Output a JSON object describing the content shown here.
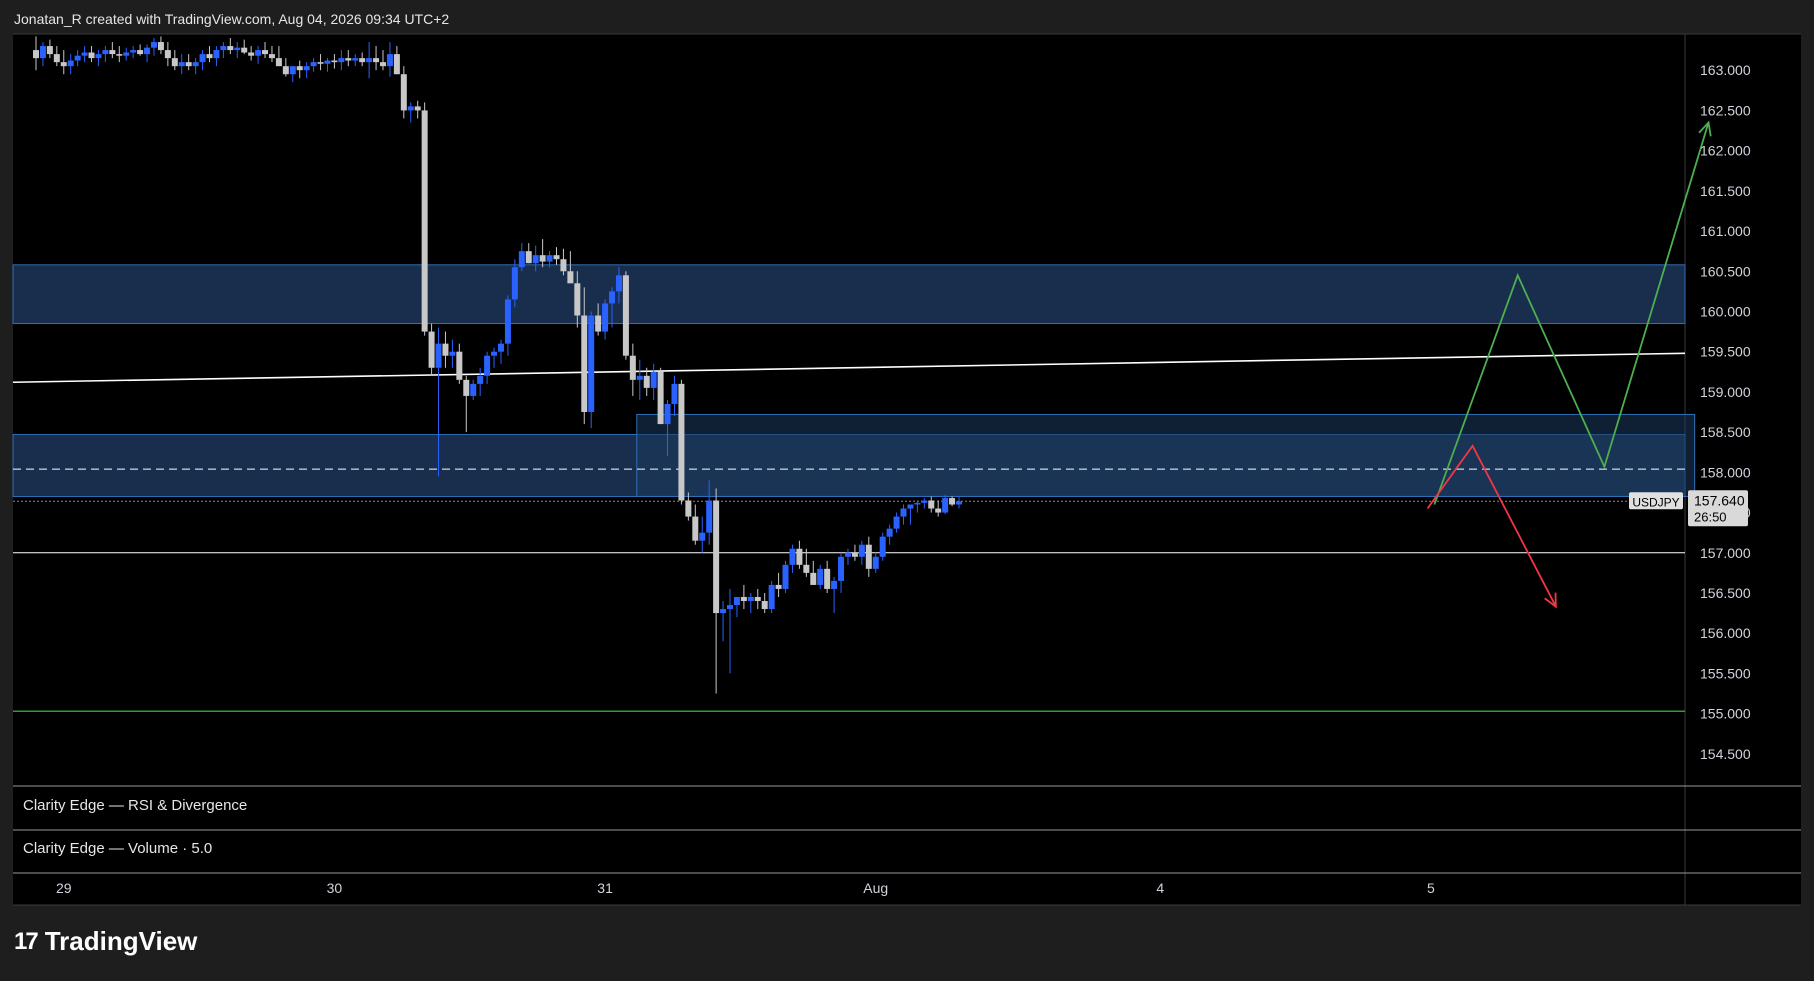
{
  "header": {
    "attribution": "Jonatan_R created with TradingView.com, Aug 04, 2026 09:34 UTC+2"
  },
  "branding": {
    "logo_mark": "17",
    "logo_text": "TradingView"
  },
  "panes": {
    "rsi_title": "Clarity Edge — RSI & Divergence",
    "volume_title": "Clarity Edge — Volume · 5.0"
  },
  "price_scale": {
    "ticks": [
      "163.000",
      "162.500",
      "162.000",
      "161.500",
      "161.000",
      "160.500",
      "160.000",
      "159.500",
      "159.000",
      "158.500",
      "158.000",
      "157.500",
      "157.000",
      "156.500",
      "156.000",
      "155.500",
      "155.000",
      "154.500"
    ],
    "symbol_label": "USDJPY",
    "last_price": "157.640",
    "countdown": "26:50"
  },
  "time_scale": {
    "labels": [
      "29",
      "30",
      "31",
      "Aug",
      "4",
      "5"
    ]
  },
  "colors": {
    "background": "#000000",
    "up_candle": "#2962ff",
    "down_candle": "#c8c8c8",
    "zone_fill": "#1e3a5f",
    "zone_border": "#2f6fb8",
    "trendline": "#ffffff",
    "support_line": "#2e9e2e",
    "bullish_path": "#4caf50",
    "bearish_path": "#f23645"
  },
  "chart_data": {
    "type": "candlestick",
    "symbol": "USDJPY",
    "ylim": [
      154.1,
      163.45
    ],
    "x_labels": [
      "29",
      "30",
      "31",
      "Aug",
      "4",
      "5"
    ],
    "x_label_index": [
      4,
      43,
      82,
      121,
      162,
      201
    ],
    "candles": [
      [
        163.25,
        163.42,
        163.0,
        163.15
      ],
      [
        163.15,
        163.35,
        163.05,
        163.3
      ],
      [
        163.3,
        163.38,
        163.15,
        163.2
      ],
      [
        163.2,
        163.3,
        163.05,
        163.1
      ],
      [
        163.1,
        163.25,
        162.95,
        163.05
      ],
      [
        163.05,
        163.2,
        162.95,
        163.12
      ],
      [
        163.12,
        163.25,
        163.05,
        163.18
      ],
      [
        163.18,
        163.3,
        163.1,
        163.22
      ],
      [
        163.22,
        163.3,
        163.1,
        163.15
      ],
      [
        163.15,
        163.25,
        163.05,
        163.2
      ],
      [
        163.2,
        163.3,
        163.1,
        163.25
      ],
      [
        163.25,
        163.35,
        163.15,
        163.2
      ],
      [
        163.2,
        163.3,
        163.1,
        163.18
      ],
      [
        163.18,
        163.28,
        163.12,
        163.22
      ],
      [
        163.22,
        163.3,
        163.15,
        163.25
      ],
      [
        163.25,
        163.32,
        163.18,
        163.2
      ],
      [
        163.2,
        163.32,
        163.1,
        163.28
      ],
      [
        163.28,
        163.4,
        163.18,
        163.35
      ],
      [
        163.35,
        163.42,
        163.2,
        163.25
      ],
      [
        163.25,
        163.35,
        163.05,
        163.15
      ],
      [
        163.15,
        163.25,
        163.0,
        163.05
      ],
      [
        163.05,
        163.2,
        162.95,
        163.1
      ],
      [
        163.1,
        163.2,
        163.0,
        163.05
      ],
      [
        163.05,
        163.15,
        162.95,
        163.1
      ],
      [
        163.1,
        163.25,
        163.0,
        163.2
      ],
      [
        163.2,
        163.3,
        163.1,
        163.15
      ],
      [
        163.15,
        163.3,
        163.05,
        163.25
      ],
      [
        163.25,
        163.35,
        163.15,
        163.3
      ],
      [
        163.3,
        163.4,
        163.2,
        163.25
      ],
      [
        163.25,
        163.35,
        163.15,
        163.28
      ],
      [
        163.28,
        163.38,
        163.2,
        163.22
      ],
      [
        163.22,
        163.3,
        163.12,
        163.18
      ],
      [
        163.18,
        163.3,
        163.08,
        163.25
      ],
      [
        163.25,
        163.35,
        163.15,
        163.2
      ],
      [
        163.2,
        163.3,
        163.1,
        163.15
      ],
      [
        163.15,
        163.3,
        163.05,
        163.05
      ],
      [
        163.05,
        163.15,
        162.92,
        162.95
      ],
      [
        162.95,
        163.05,
        162.85,
        163.05
      ],
      [
        163.05,
        163.12,
        162.9,
        163.0
      ],
      [
        163.0,
        163.1,
        162.9,
        163.05
      ],
      [
        163.05,
        163.15,
        162.98,
        163.1
      ],
      [
        163.1,
        163.2,
        163.0,
        163.08
      ],
      [
        163.08,
        163.15,
        162.98,
        163.12
      ],
      [
        163.12,
        163.2,
        163.02,
        163.1
      ],
      [
        163.1,
        163.25,
        163.0,
        163.15
      ],
      [
        163.15,
        163.25,
        163.05,
        163.12
      ],
      [
        163.12,
        163.2,
        163.05,
        163.15
      ],
      [
        163.15,
        163.22,
        163.05,
        163.1
      ],
      [
        163.1,
        163.35,
        162.9,
        163.15
      ],
      [
        163.15,
        163.3,
        163.0,
        163.1
      ],
      [
        163.1,
        163.25,
        163.0,
        163.05
      ],
      [
        163.05,
        163.35,
        162.92,
        163.2
      ],
      [
        163.2,
        163.3,
        162.95,
        162.95
      ],
      [
        162.95,
        163.05,
        162.4,
        162.5
      ],
      [
        162.5,
        162.6,
        162.35,
        162.55
      ],
      [
        162.55,
        162.62,
        162.4,
        162.5
      ],
      [
        162.5,
        162.6,
        159.7,
        159.75
      ],
      [
        159.75,
        159.85,
        159.2,
        159.3
      ],
      [
        159.3,
        159.8,
        157.95,
        159.6
      ],
      [
        159.6,
        159.75,
        159.3,
        159.45
      ],
      [
        159.45,
        159.65,
        159.3,
        159.5
      ],
      [
        159.5,
        159.6,
        159.1,
        159.15
      ],
      [
        159.15,
        159.2,
        158.5,
        158.95
      ],
      [
        158.95,
        159.15,
        158.9,
        159.1
      ],
      [
        159.1,
        159.3,
        158.95,
        159.2
      ],
      [
        159.2,
        159.5,
        159.1,
        159.45
      ],
      [
        159.45,
        159.55,
        159.3,
        159.5
      ],
      [
        159.5,
        159.65,
        159.35,
        159.6
      ],
      [
        159.6,
        160.2,
        159.45,
        160.15
      ],
      [
        160.15,
        160.65,
        160.05,
        160.55
      ],
      [
        160.55,
        160.85,
        160.5,
        160.75
      ],
      [
        160.75,
        160.85,
        160.6,
        160.6
      ],
      [
        160.6,
        160.82,
        160.5,
        160.7
      ],
      [
        160.7,
        160.9,
        160.55,
        160.62
      ],
      [
        160.62,
        160.75,
        160.55,
        160.7
      ],
      [
        160.7,
        160.8,
        160.58,
        160.65
      ],
      [
        160.65,
        160.78,
        160.45,
        160.5
      ],
      [
        160.5,
        160.75,
        160.4,
        160.35
      ],
      [
        160.35,
        160.5,
        159.8,
        159.95
      ],
      [
        159.95,
        160.3,
        158.6,
        158.75
      ],
      [
        158.75,
        160.0,
        158.55,
        159.95
      ],
      [
        159.95,
        160.1,
        159.7,
        159.75
      ],
      [
        159.75,
        160.15,
        159.65,
        160.1
      ],
      [
        160.1,
        160.3,
        159.8,
        160.25
      ],
      [
        160.25,
        160.55,
        160.1,
        160.45
      ],
      [
        160.45,
        160.5,
        159.4,
        159.45
      ],
      [
        159.45,
        159.6,
        158.95,
        159.15
      ],
      [
        159.15,
        159.4,
        158.9,
        159.2
      ],
      [
        159.2,
        159.3,
        158.95,
        159.05
      ],
      [
        159.05,
        159.35,
        158.9,
        159.25
      ],
      [
        159.25,
        159.3,
        158.6,
        158.6
      ],
      [
        158.6,
        158.9,
        158.2,
        158.85
      ],
      [
        158.85,
        159.2,
        158.7,
        159.1
      ],
      [
        159.1,
        159.15,
        157.6,
        157.65
      ],
      [
        157.65,
        157.75,
        157.4,
        157.45
      ],
      [
        157.45,
        157.6,
        157.1,
        157.15
      ],
      [
        157.15,
        157.45,
        157.0,
        157.25
      ],
      [
        157.25,
        157.9,
        157.1,
        157.65
      ],
      [
        157.65,
        157.8,
        155.25,
        156.25
      ],
      [
        156.25,
        156.4,
        155.9,
        156.3
      ],
      [
        156.3,
        156.55,
        155.5,
        156.35
      ],
      [
        156.35,
        156.45,
        156.2,
        156.45
      ],
      [
        156.45,
        156.6,
        156.3,
        156.4
      ],
      [
        156.4,
        156.5,
        156.25,
        156.45
      ],
      [
        156.45,
        156.55,
        156.3,
        156.4
      ],
      [
        156.4,
        156.5,
        156.25,
        156.3
      ],
      [
        156.3,
        156.65,
        156.25,
        156.6
      ],
      [
        156.6,
        156.75,
        156.45,
        156.55
      ],
      [
        156.55,
        156.9,
        156.5,
        156.85
      ],
      [
        156.85,
        157.1,
        156.75,
        157.05
      ],
      [
        157.05,
        157.15,
        156.8,
        156.85
      ],
      [
        156.85,
        157.05,
        156.7,
        156.75
      ],
      [
        156.75,
        156.9,
        156.6,
        156.6
      ],
      [
        156.6,
        156.85,
        156.55,
        156.8
      ],
      [
        156.8,
        156.9,
        156.5,
        156.55
      ],
      [
        156.55,
        156.7,
        156.25,
        156.65
      ],
      [
        156.65,
        157.0,
        156.5,
        156.95
      ],
      [
        156.95,
        157.05,
        156.85,
        157.0
      ],
      [
        157.0,
        157.1,
        156.9,
        156.95
      ],
      [
        156.95,
        157.15,
        156.85,
        157.1
      ],
      [
        157.1,
        157.2,
        156.7,
        156.8
      ],
      [
        156.8,
        157.0,
        156.75,
        156.95
      ],
      [
        156.95,
        157.25,
        156.9,
        157.2
      ],
      [
        157.2,
        157.35,
        157.1,
        157.3
      ],
      [
        157.3,
        157.5,
        157.25,
        157.45
      ],
      [
        157.45,
        157.6,
        157.35,
        157.55
      ],
      [
        157.55,
        157.6,
        157.35,
        157.6
      ],
      [
        157.6,
        157.65,
        157.5,
        157.62
      ],
      [
        157.62,
        157.68,
        157.55,
        157.65
      ],
      [
        157.65,
        157.7,
        157.5,
        157.55
      ],
      [
        157.55,
        157.65,
        157.45,
        157.5
      ],
      [
        157.5,
        157.72,
        157.48,
        157.68
      ],
      [
        157.68,
        157.7,
        157.58,
        157.6
      ],
      [
        157.6,
        157.7,
        157.55,
        157.64
      ]
    ],
    "demand_zones": [
      {
        "from_index": 0,
        "to_index": 251,
        "high": 160.58,
        "low": 159.85
      },
      {
        "from_index": 0,
        "to_index": 251,
        "high": 158.47,
        "low": 157.7
      },
      {
        "from_index": 87,
        "to_index": 239,
        "high": 158.72,
        "low": 157.7
      }
    ],
    "horizontal_levels": [
      {
        "price": 158.04,
        "style": "dashed",
        "color": "#ffffff"
      },
      {
        "price": 157.0,
        "style": "solid",
        "color": "#ffffff"
      },
      {
        "price": 157.64,
        "style": "dotted",
        "color": "#888888"
      },
      {
        "price": 155.03,
        "style": "solid",
        "color": "#2e9e2e"
      }
    ],
    "trendline": {
      "from": [
        0,
        159.12
      ],
      "to": [
        251,
        159.48
      ]
    },
    "projection_bullish": [
      [
        201.5,
        157.6
      ],
      [
        213.5,
        160.45
      ],
      [
        226,
        158.07
      ],
      [
        241,
        162.35
      ]
    ],
    "projection_bearish": [
      [
        200.5,
        157.55
      ],
      [
        207,
        158.33
      ],
      [
        219,
        156.33
      ]
    ]
  }
}
